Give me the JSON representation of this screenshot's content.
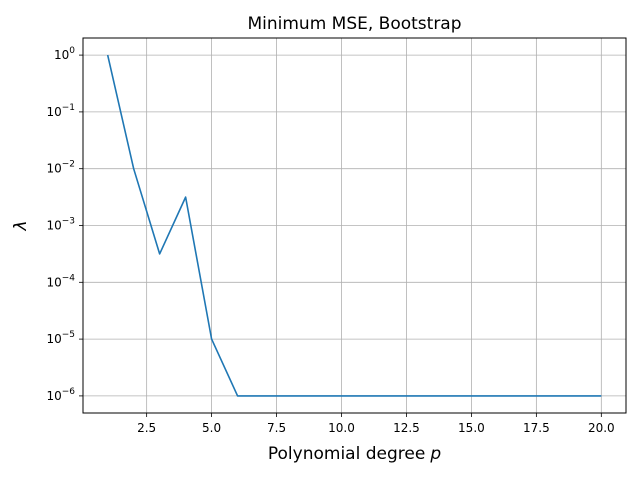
{
  "chart_data": {
    "type": "line",
    "title": "Minimum MSE, Bootstrap",
    "xlabel": "Polynomial degree",
    "xlabel_var": "p",
    "ylabel": "λ",
    "xscale": "linear",
    "yscale": "log",
    "xlim": [
      0.05,
      20.95
    ],
    "ylim": [
      5e-07,
      2
    ],
    "grid": true,
    "x_ticks": [
      2.5,
      5.0,
      7.5,
      10.0,
      12.5,
      15.0,
      17.5,
      20.0
    ],
    "x_tick_labels": [
      "2.5",
      "5.0",
      "7.5",
      "10.0",
      "12.5",
      "15.0",
      "17.5",
      "20.0"
    ],
    "y_ticks": [
      1e-06,
      1e-05,
      0.0001,
      0.001,
      0.01,
      0.1,
      1
    ],
    "y_tick_exponents": [
      "−6",
      "−5",
      "−4",
      "−3",
      "−2",
      "−1",
      "0"
    ],
    "y_tick_base": "10",
    "series": [
      {
        "color": "#1f77b4",
        "x": [
          1,
          2,
          3,
          4,
          5,
          6,
          7,
          8,
          9,
          10,
          11,
          12,
          13,
          14,
          15,
          16,
          17,
          18,
          19,
          20
        ],
        "y": [
          1,
          0.01,
          0.000316,
          0.00316,
          1e-05,
          1e-06,
          1e-06,
          1e-06,
          1e-06,
          1e-06,
          1e-06,
          1e-06,
          1e-06,
          1e-06,
          1e-06,
          1e-06,
          1e-06,
          1e-06,
          1e-06,
          1e-06
        ]
      }
    ]
  }
}
